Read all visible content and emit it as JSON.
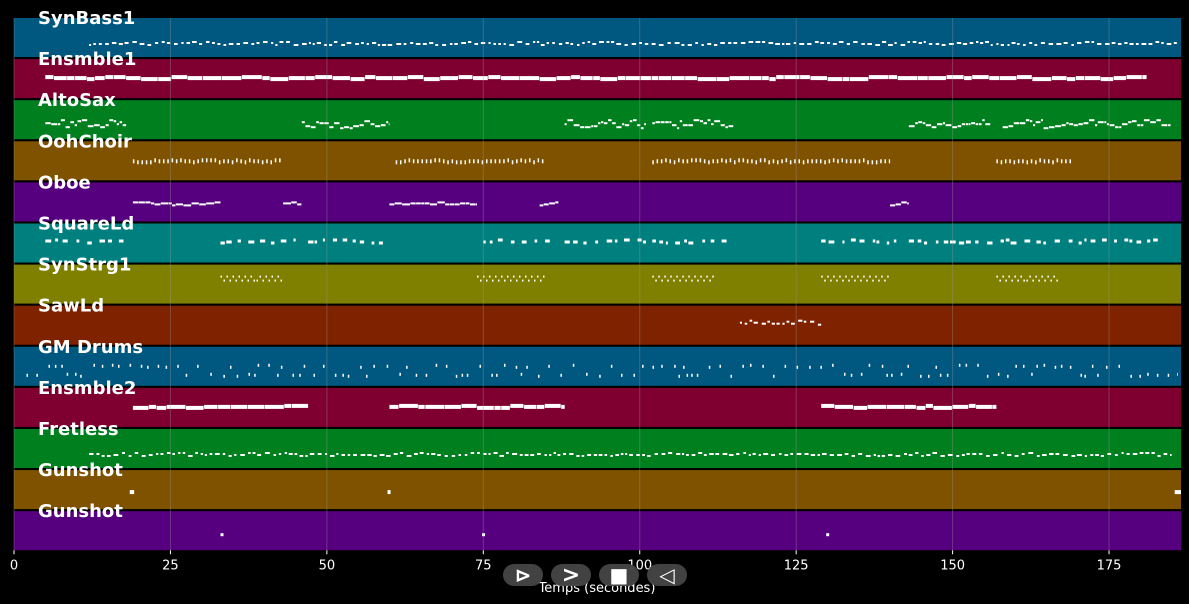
{
  "axis": {
    "title": "Temps (secondes)",
    "ticks": [
      "0",
      "25",
      "50",
      "75",
      "100",
      "125",
      "150",
      "175"
    ],
    "xlim": [
      0,
      186.5
    ]
  },
  "colors": {
    "background": "#000000",
    "grid": "#9a9a9a",
    "note": "#ffffff"
  },
  "tracks": [
    {
      "name": "SynBass1",
      "color": "#005780",
      "pattern": "bass",
      "segments": [
        [
          12,
          186
        ]
      ]
    },
    {
      "name": "Ensmble1",
      "color": "#7f0030",
      "pattern": "long",
      "segments": [
        [
          5,
          181
        ]
      ]
    },
    {
      "name": "AltoSax",
      "color": "#007f1f",
      "pattern": "dense",
      "segments": [
        [
          5,
          18
        ],
        [
          46,
          60
        ],
        [
          88,
          101
        ],
        [
          102,
          115
        ],
        [
          143,
          156
        ],
        [
          158,
          185
        ]
      ]
    },
    {
      "name": "OohChoir",
      "color": "#7f5200",
      "pattern": "choir",
      "segments": [
        [
          19,
          43
        ],
        [
          61,
          85
        ],
        [
          102,
          140
        ],
        [
          157,
          169
        ]
      ]
    },
    {
      "name": "Oboe",
      "color": "#57007f",
      "pattern": "melody",
      "segments": [
        [
          19,
          33
        ],
        [
          43,
          46
        ],
        [
          60,
          74
        ],
        [
          84,
          87
        ],
        [
          140,
          143
        ]
      ]
    },
    {
      "name": "SquareLd",
      "color": "#007f7f",
      "pattern": "square",
      "segments": [
        [
          5,
          18
        ],
        [
          33,
          45
        ],
        [
          47,
          60
        ],
        [
          75,
          86
        ],
        [
          88,
          101
        ],
        [
          102,
          114
        ],
        [
          129,
          141
        ],
        [
          143,
          183
        ]
      ]
    },
    {
      "name": "SynStrg1",
      "color": "#7f7f00",
      "pattern": "wave",
      "segments": [
        [
          33,
          43
        ],
        [
          74,
          85
        ],
        [
          102,
          112
        ],
        [
          129,
          140
        ],
        [
          157,
          167
        ]
      ]
    },
    {
      "name": "SawLd",
      "color": "#7f2200",
      "pattern": "sparse",
      "segments": [
        [
          116,
          129
        ]
      ]
    },
    {
      "name": "GM Drums",
      "color": "#005780",
      "pattern": "drums",
      "segments": [
        [
          2,
          186
        ]
      ]
    },
    {
      "name": "Ensmble2",
      "color": "#7f0030",
      "pattern": "long",
      "segments": [
        [
          19,
          47
        ],
        [
          60,
          88
        ],
        [
          129,
          157
        ]
      ]
    },
    {
      "name": "Fretless",
      "color": "#007f1f",
      "pattern": "bass",
      "segments": [
        [
          12,
          185
        ]
      ]
    },
    {
      "name": "Gunshot",
      "color": "#7f5200",
      "pattern": "single",
      "segments": [
        [
          18.5,
          19.2
        ],
        [
          59.7,
          60.1
        ],
        [
          185.5,
          186.5
        ]
      ]
    },
    {
      "name": "Gunshot",
      "color": "#57007f",
      "pattern": "single",
      "segments": [
        [
          33,
          33.3
        ],
        [
          74.8,
          75
        ],
        [
          129.8,
          130
        ]
      ]
    }
  ],
  "controls": [
    {
      "id": "play-button",
      "symbol": "⊳"
    },
    {
      "id": "forward-button",
      "symbol": ">"
    },
    {
      "id": "stop-button",
      "symbol": "■"
    },
    {
      "id": "rewind-button",
      "symbol": "◁"
    }
  ]
}
